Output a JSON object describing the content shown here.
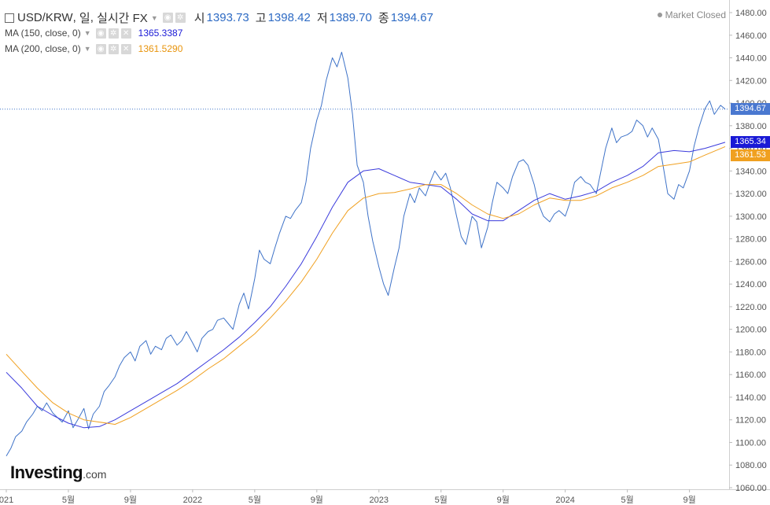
{
  "header": {
    "symbol": "USD/KRW",
    "interval": "일",
    "feed": "실시간 FX",
    "open_label": "시",
    "open": "1393.73",
    "high_label": "고",
    "high": "1398.42",
    "low_label": "저",
    "low": "1389.70",
    "close_label": "종",
    "close": "1394.67",
    "market_status": "Market Closed"
  },
  "indicators": [
    {
      "label": "MA (150, close, 0)",
      "value": "1365.3387",
      "color": "#1a1ad6"
    },
    {
      "label": "MA (200, close, 0)",
      "value": "1361.5290",
      "color": "#e8940c"
    }
  ],
  "logo": {
    "name": "Investing",
    "suffix": ".com"
  },
  "price_tags": {
    "last": {
      "text": "1394.67",
      "value": 1394.67,
      "color": "#4a78d0"
    },
    "ma150": {
      "text": "1365.34",
      "value": 1365.34,
      "color": "#1a1ad6"
    },
    "ma200": {
      "text": "1361.53",
      "value": 1361.53,
      "color": "#f0a020"
    }
  },
  "chart_data": {
    "type": "line",
    "ylim": [
      1060,
      1480
    ],
    "y_ticks": [
      1060,
      1080,
      1100,
      1120,
      1140,
      1160,
      1180,
      1200,
      1220,
      1240,
      1260,
      1280,
      1300,
      1320,
      1340,
      1360,
      1380,
      1400,
      1420,
      1440,
      1460,
      1480
    ],
    "x_tick_labels": [
      {
        "label": "021",
        "t": 0
      },
      {
        "label": "5월",
        "t": 4
      },
      {
        "label": "9월",
        "t": 8
      },
      {
        "label": "2022",
        "t": 12
      },
      {
        "label": "5월",
        "t": 16
      },
      {
        "label": "9월",
        "t": 20
      },
      {
        "label": "2023",
        "t": 24
      },
      {
        "label": "5월",
        "t": 28
      },
      {
        "label": "9월",
        "t": 32
      },
      {
        "label": "2024",
        "t": 36
      },
      {
        "label": "5월",
        "t": 40
      },
      {
        "label": "9월",
        "t": 44
      }
    ],
    "t_range": [
      0,
      46.3
    ],
    "last_price_line": 1394.67,
    "series": [
      {
        "role": "price",
        "color": "#3f73c8",
        "points": [
          [
            0,
            1088
          ],
          [
            0.3,
            1095
          ],
          [
            0.6,
            1105
          ],
          [
            1,
            1110
          ],
          [
            1.3,
            1118
          ],
          [
            1.7,
            1125
          ],
          [
            2,
            1132
          ],
          [
            2.3,
            1128
          ],
          [
            2.6,
            1135
          ],
          [
            3,
            1126
          ],
          [
            3.3,
            1122
          ],
          [
            3.6,
            1118
          ],
          [
            4,
            1128
          ],
          [
            4.3,
            1113
          ],
          [
            4.6,
            1120
          ],
          [
            5,
            1130
          ],
          [
            5.3,
            1112
          ],
          [
            5.6,
            1125
          ],
          [
            6,
            1132
          ],
          [
            6.3,
            1145
          ],
          [
            6.6,
            1150
          ],
          [
            7,
            1158
          ],
          [
            7.3,
            1168
          ],
          [
            7.6,
            1175
          ],
          [
            8,
            1180
          ],
          [
            8.3,
            1172
          ],
          [
            8.6,
            1185
          ],
          [
            9,
            1190
          ],
          [
            9.3,
            1178
          ],
          [
            9.6,
            1185
          ],
          [
            10,
            1182
          ],
          [
            10.3,
            1192
          ],
          [
            10.6,
            1195
          ],
          [
            11,
            1186
          ],
          [
            11.3,
            1190
          ],
          [
            11.6,
            1198
          ],
          [
            12,
            1188
          ],
          [
            12.3,
            1180
          ],
          [
            12.6,
            1192
          ],
          [
            13,
            1198
          ],
          [
            13.3,
            1200
          ],
          [
            13.6,
            1208
          ],
          [
            14,
            1210
          ],
          [
            14.3,
            1205
          ],
          [
            14.6,
            1200
          ],
          [
            15,
            1222
          ],
          [
            15.3,
            1232
          ],
          [
            15.6,
            1218
          ],
          [
            16,
            1245
          ],
          [
            16.3,
            1270
          ],
          [
            16.6,
            1262
          ],
          [
            17,
            1258
          ],
          [
            17.3,
            1272
          ],
          [
            17.6,
            1285
          ],
          [
            18,
            1300
          ],
          [
            18.3,
            1298
          ],
          [
            18.6,
            1305
          ],
          [
            19,
            1312
          ],
          [
            19.3,
            1330
          ],
          [
            19.6,
            1360
          ],
          [
            20,
            1385
          ],
          [
            20.3,
            1398
          ],
          [
            20.6,
            1420
          ],
          [
            21,
            1440
          ],
          [
            21.3,
            1432
          ],
          [
            21.6,
            1445
          ],
          [
            22,
            1422
          ],
          [
            22.3,
            1390
          ],
          [
            22.6,
            1345
          ],
          [
            23,
            1330
          ],
          [
            23.3,
            1300
          ],
          [
            23.6,
            1278
          ],
          [
            24,
            1255
          ],
          [
            24.3,
            1240
          ],
          [
            24.6,
            1230
          ],
          [
            25,
            1255
          ],
          [
            25.3,
            1272
          ],
          [
            25.6,
            1300
          ],
          [
            26,
            1320
          ],
          [
            26.3,
            1312
          ],
          [
            26.6,
            1325
          ],
          [
            27,
            1318
          ],
          [
            27.3,
            1330
          ],
          [
            27.6,
            1340
          ],
          [
            28,
            1332
          ],
          [
            28.3,
            1338
          ],
          [
            28.6,
            1325
          ],
          [
            29,
            1300
          ],
          [
            29.3,
            1282
          ],
          [
            29.6,
            1275
          ],
          [
            30,
            1300
          ],
          [
            30.3,
            1295
          ],
          [
            30.6,
            1272
          ],
          [
            31,
            1290
          ],
          [
            31.3,
            1312
          ],
          [
            31.6,
            1330
          ],
          [
            32,
            1325
          ],
          [
            32.3,
            1320
          ],
          [
            32.6,
            1335
          ],
          [
            33,
            1348
          ],
          [
            33.3,
            1350
          ],
          [
            33.6,
            1345
          ],
          [
            34,
            1328
          ],
          [
            34.3,
            1310
          ],
          [
            34.6,
            1300
          ],
          [
            35,
            1295
          ],
          [
            35.3,
            1302
          ],
          [
            35.6,
            1305
          ],
          [
            36,
            1300
          ],
          [
            36.3,
            1312
          ],
          [
            36.6,
            1330
          ],
          [
            37,
            1335
          ],
          [
            37.3,
            1330
          ],
          [
            37.6,
            1328
          ],
          [
            38,
            1320
          ],
          [
            38.3,
            1340
          ],
          [
            38.6,
            1360
          ],
          [
            39,
            1378
          ],
          [
            39.3,
            1365
          ],
          [
            39.6,
            1370
          ],
          [
            40,
            1372
          ],
          [
            40.3,
            1375
          ],
          [
            40.6,
            1385
          ],
          [
            41,
            1380
          ],
          [
            41.3,
            1370
          ],
          [
            41.6,
            1378
          ],
          [
            42,
            1368
          ],
          [
            42.3,
            1345
          ],
          [
            42.6,
            1320
          ],
          [
            43,
            1315
          ],
          [
            43.3,
            1328
          ],
          [
            43.6,
            1325
          ],
          [
            44,
            1340
          ],
          [
            44.3,
            1362
          ],
          [
            44.6,
            1378
          ],
          [
            45,
            1395
          ],
          [
            45.3,
            1402
          ],
          [
            45.6,
            1390
          ],
          [
            46,
            1398
          ],
          [
            46.3,
            1394.67
          ]
        ]
      },
      {
        "role": "ma150",
        "name": "MA (150, close, 0)",
        "color": "#3b3bdc",
        "points": [
          [
            0,
            1162
          ],
          [
            1,
            1148
          ],
          [
            2,
            1132
          ],
          [
            3,
            1124
          ],
          [
            4,
            1117
          ],
          [
            5,
            1113
          ],
          [
            6,
            1114
          ],
          [
            7,
            1120
          ],
          [
            8,
            1128
          ],
          [
            9,
            1136
          ],
          [
            10,
            1144
          ],
          [
            11,
            1152
          ],
          [
            12,
            1162
          ],
          [
            13,
            1172
          ],
          [
            14,
            1182
          ],
          [
            15,
            1193
          ],
          [
            16,
            1206
          ],
          [
            17,
            1220
          ],
          [
            18,
            1238
          ],
          [
            19,
            1258
          ],
          [
            20,
            1282
          ],
          [
            21,
            1308
          ],
          [
            22,
            1330
          ],
          [
            23,
            1340
          ],
          [
            24,
            1342
          ],
          [
            25,
            1336
          ],
          [
            26,
            1330
          ],
          [
            27,
            1328
          ],
          [
            28,
            1326
          ],
          [
            29,
            1315
          ],
          [
            30,
            1302
          ],
          [
            31,
            1296
          ],
          [
            32,
            1296
          ],
          [
            33,
            1305
          ],
          [
            34,
            1314
          ],
          [
            35,
            1320
          ],
          [
            36,
            1315
          ],
          [
            37,
            1318
          ],
          [
            38,
            1322
          ],
          [
            39,
            1330
          ],
          [
            40,
            1336
          ],
          [
            41,
            1344
          ],
          [
            42,
            1356
          ],
          [
            43,
            1358
          ],
          [
            44,
            1357
          ],
          [
            45,
            1360
          ],
          [
            46.3,
            1365.34
          ]
        ]
      },
      {
        "role": "ma200",
        "name": "MA (200, close, 0)",
        "color": "#f0a020",
        "points": [
          [
            0,
            1178
          ],
          [
            1,
            1163
          ],
          [
            2,
            1148
          ],
          [
            3,
            1135
          ],
          [
            4,
            1126
          ],
          [
            5,
            1120
          ],
          [
            6,
            1118
          ],
          [
            7,
            1116
          ],
          [
            8,
            1122
          ],
          [
            9,
            1130
          ],
          [
            10,
            1138
          ],
          [
            11,
            1146
          ],
          [
            12,
            1155
          ],
          [
            13,
            1165
          ],
          [
            14,
            1174
          ],
          [
            15,
            1185
          ],
          [
            16,
            1196
          ],
          [
            17,
            1210
          ],
          [
            18,
            1225
          ],
          [
            19,
            1242
          ],
          [
            20,
            1262
          ],
          [
            21,
            1285
          ],
          [
            22,
            1305
          ],
          [
            23,
            1316
          ],
          [
            24,
            1320
          ],
          [
            25,
            1321
          ],
          [
            26,
            1324
          ],
          [
            27,
            1328
          ],
          [
            28,
            1328
          ],
          [
            29,
            1320
          ],
          [
            30,
            1310
          ],
          [
            31,
            1302
          ],
          [
            32,
            1298
          ],
          [
            33,
            1302
          ],
          [
            34,
            1310
          ],
          [
            35,
            1316
          ],
          [
            36,
            1314
          ],
          [
            37,
            1314
          ],
          [
            38,
            1318
          ],
          [
            39,
            1325
          ],
          [
            40,
            1330
          ],
          [
            41,
            1336
          ],
          [
            42,
            1344
          ],
          [
            43,
            1346
          ],
          [
            44,
            1348
          ],
          [
            45,
            1354
          ],
          [
            46.3,
            1361.53
          ]
        ]
      }
    ]
  }
}
